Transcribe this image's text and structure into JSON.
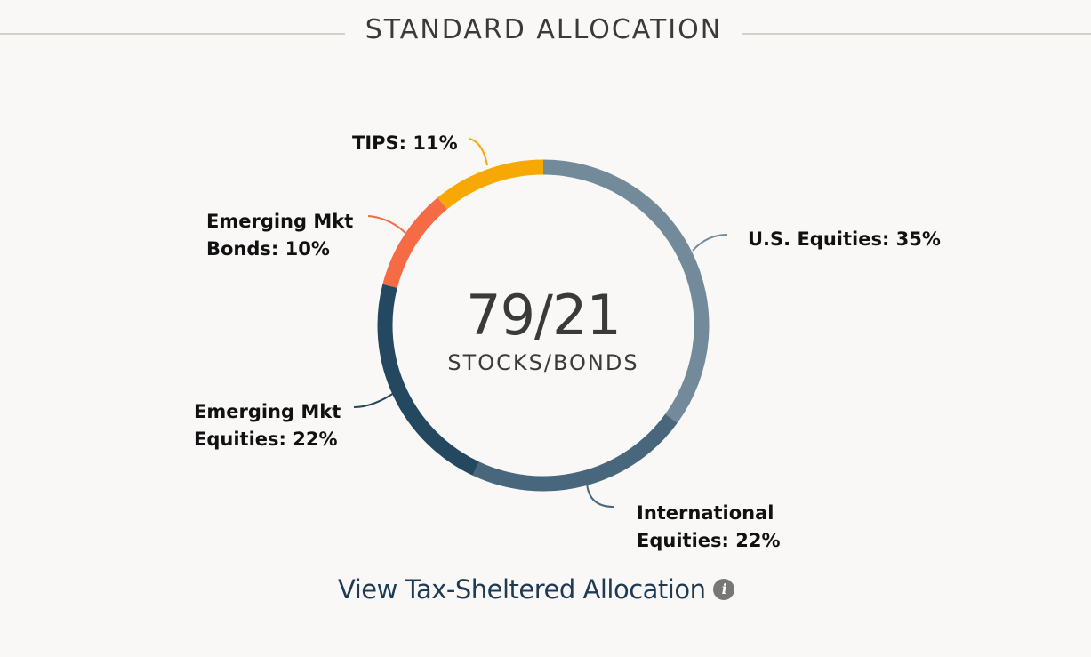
{
  "header": {
    "title": "STANDARD ALLOCATION"
  },
  "chart_data": {
    "type": "pie",
    "style": "donut",
    "center": {
      "value": "79/21",
      "caption": "STOCKS/BONDS"
    },
    "slices": [
      {
        "key": "us-equities",
        "label_lines": [
          "U.S. Equities: 35%"
        ],
        "value": 35,
        "color": "#728a9a"
      },
      {
        "key": "international-equities",
        "label_lines": [
          "International",
          "Equities: 22%"
        ],
        "value": 22,
        "color": "#48667c"
      },
      {
        "key": "emerging-mkt-equities",
        "label_lines": [
          "Emerging Mkt",
          "Equities: 22%"
        ],
        "value": 22,
        "color": "#244860"
      },
      {
        "key": "emerging-mkt-bonds",
        "label_lines": [
          "Emerging Mkt",
          "Bonds: 10%"
        ],
        "value": 10,
        "color": "#f46b45"
      },
      {
        "key": "tips",
        "label_lines": [
          "TIPS: 11%"
        ],
        "value": 11,
        "color": "#f8a804"
      }
    ]
  },
  "footer": {
    "link_label": "View Tax-Sheltered Allocation",
    "info_glyph": "i",
    "info_icon": "info-icon"
  }
}
